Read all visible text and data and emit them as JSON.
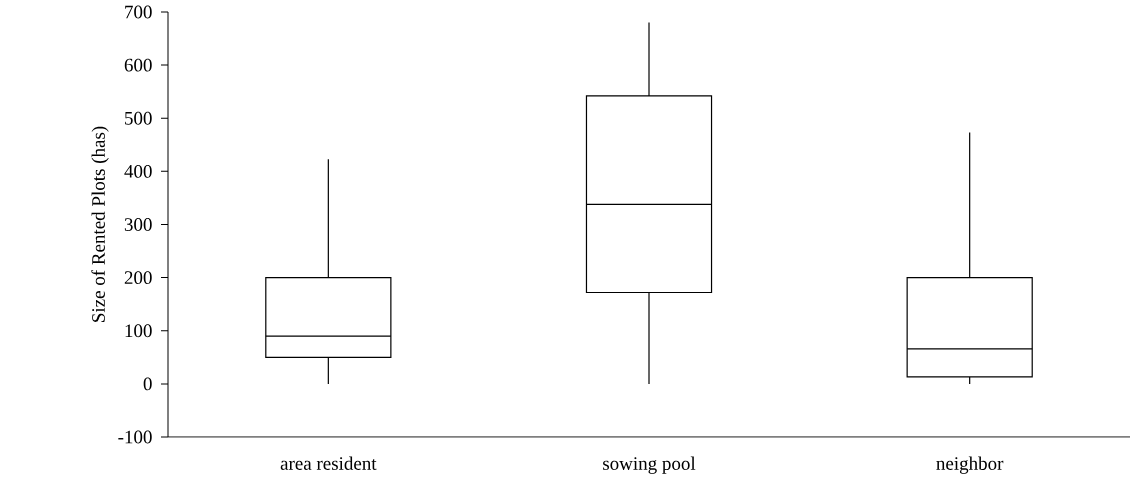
{
  "chart_data": {
    "type": "box",
    "ylabel": "Size of Rented Plots (has)",
    "categories": [
      "area resident",
      "sowing pool",
      "neighbor"
    ],
    "boxes": [
      {
        "low": 0,
        "q1": 50,
        "median": 90,
        "q3": 200,
        "high": 423
      },
      {
        "low": 0,
        "q1": 172,
        "median": 338,
        "q3": 542,
        "high": 680
      },
      {
        "low": 0,
        "q1": 13,
        "median": 66,
        "q3": 200,
        "high": 473
      }
    ],
    "ylim": [
      -100,
      700
    ],
    "yticks": [
      -100,
      0,
      100,
      200,
      300,
      400,
      500,
      600,
      700
    ]
  }
}
